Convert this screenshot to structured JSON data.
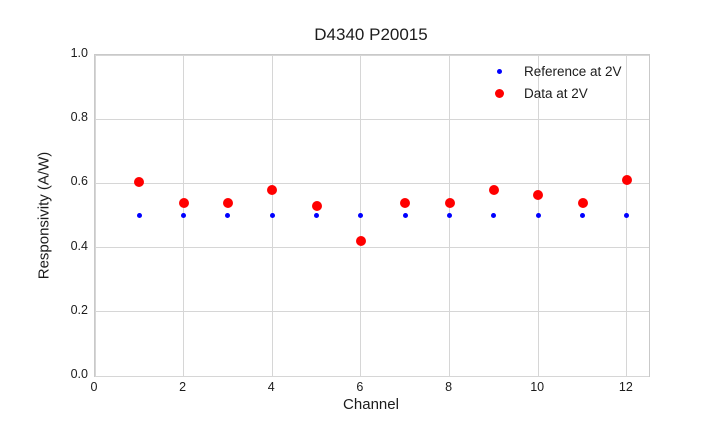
{
  "chart_data": {
    "type": "scatter",
    "title": "D4340 P20015",
    "xlabel": "Channel",
    "ylabel": "Responsivity (A/W)",
    "xlim": [
      0,
      12.5
    ],
    "ylim": [
      0.0,
      1.0
    ],
    "xticks": [
      0,
      2,
      4,
      6,
      8,
      10,
      12
    ],
    "xtick_labels": [
      "0",
      "2",
      "4",
      "6",
      "8",
      "10",
      "12"
    ],
    "yticks": [
      0.0,
      0.2,
      0.4,
      0.6,
      0.8,
      1.0
    ],
    "ytick_labels": [
      "0.0",
      "0.2",
      "0.4",
      "0.6",
      "0.8",
      "1.0"
    ],
    "grid": true,
    "legend_position": "upper right",
    "legend_frame": false,
    "x": [
      1,
      2,
      3,
      4,
      5,
      6,
      7,
      8,
      9,
      10,
      11,
      12
    ],
    "series": [
      {
        "name": "Reference at 2V",
        "color": "#0000ff",
        "marker_size_px": 5,
        "legend_marker_px": 5,
        "values": [
          0.5,
          0.5,
          0.5,
          0.5,
          0.5,
          0.5,
          0.5,
          0.5,
          0.5,
          0.5,
          0.5,
          0.5
        ]
      },
      {
        "name": "Data at 2V",
        "color": "#ff0000",
        "marker_size_px": 10,
        "legend_marker_px": 9,
        "values": [
          0.605,
          0.54,
          0.54,
          0.58,
          0.53,
          0.42,
          0.54,
          0.54,
          0.58,
          0.565,
          0.54,
          0.61
        ]
      }
    ],
    "colors": {
      "background": "#ffffff",
      "grid": "#d6d6d6",
      "spine": "#c9c9c9",
      "text": "#1c1c1c"
    }
  }
}
